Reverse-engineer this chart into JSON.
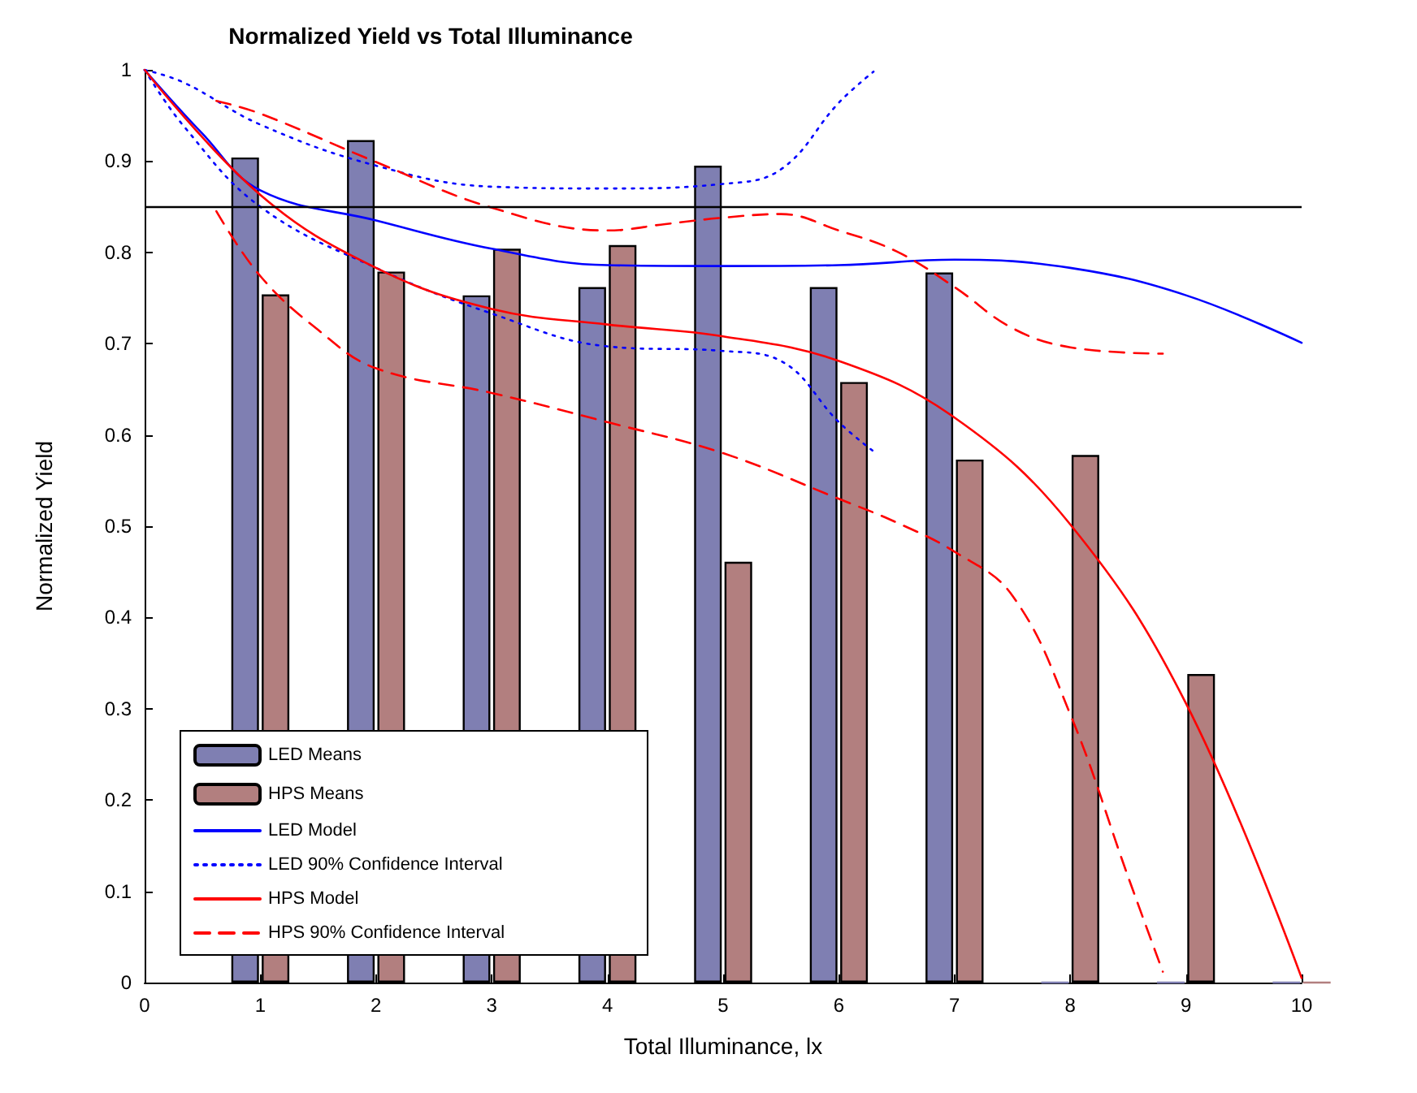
{
  "chart_data": {
    "type": "bar",
    "title": "Normalized Yield vs Total Illuminance",
    "xlabel": "Total Illuminance, lx",
    "ylabel": "Normalized Yield",
    "xlim": [
      0,
      10
    ],
    "xticks": [
      0,
      1,
      2,
      3,
      4,
      5,
      6,
      7,
      8,
      9,
      10
    ],
    "ylim": [
      0,
      1
    ],
    "yticks": [
      0,
      0.1,
      0.2,
      0.3,
      0.4,
      0.5,
      0.6,
      0.7,
      0.8,
      0.9,
      1
    ],
    "grid": false,
    "legend": "bottom left",
    "ref_lines": [
      {
        "axis": "y",
        "value": 0.85,
        "color": "#000000",
        "line_style": "solid"
      }
    ],
    "series": [
      {
        "name": "LED Means",
        "color": "#7f7fb2",
        "x": [
          1,
          2,
          3,
          4,
          5,
          6,
          7,
          8,
          9,
          10
        ],
        "values": [
          0.904,
          0.923,
          0.753,
          0.762,
          0.895,
          0.762,
          0.778,
          0,
          0,
          0
        ]
      },
      {
        "name": "HPS Means",
        "color": "#b27f7f",
        "x": [
          1,
          2,
          3,
          4,
          5,
          6,
          7,
          8,
          9,
          10
        ],
        "values": [
          0.754,
          0.779,
          0.804,
          0.808,
          0.461,
          0.658,
          0.573,
          0.578,
          0.338,
          0
        ]
      },
      {
        "name": "LED Model",
        "type": "line",
        "color": "#0000ff",
        "line_style": "solid",
        "x": [
          0,
          0.5,
          1,
          2,
          3,
          4,
          5,
          6,
          7,
          8,
          9,
          10
        ],
        "values": [
          1,
          0.93,
          0.868,
          0.835,
          0.804,
          0.786,
          0.785,
          0.786,
          0.792,
          0.783,
          0.753,
          0.701
        ]
      },
      {
        "name": "LED 90% Confidence Interval",
        "type": "line",
        "color": "#0000ff",
        "line_style": "dotted",
        "x": [
          0,
          0.34,
          1,
          2,
          3,
          4,
          5,
          5.5,
          6,
          6.3
        ],
        "values": [
          1,
          0.986,
          0.94,
          0.895,
          0.872,
          0.87,
          0.875,
          0.891,
          0.964,
          0.998
        ]
      },
      {
        "type": "line",
        "color": "#0000ff",
        "line_style": "dotted",
        "x": [
          0,
          0.34,
          1,
          2,
          3,
          4,
          5,
          5.5,
          6,
          6.3
        ],
        "values": [
          1,
          0.938,
          0.85,
          0.783,
          0.733,
          0.697,
          0.692,
          0.681,
          0.614,
          0.582
        ]
      },
      {
        "name": "HPS Model",
        "type": "line",
        "color": "#ff0000",
        "line_style": "solid",
        "x": [
          0,
          1,
          2,
          3,
          4,
          5,
          6,
          7,
          8,
          9,
          10
        ],
        "values": [
          1,
          0.863,
          0.783,
          0.738,
          0.721,
          0.708,
          0.681,
          0.619,
          0.502,
          0.306,
          0.005
        ]
      },
      {
        "name": "HPS 90% Confidence Interval",
        "type": "line",
        "color": "#ff0000",
        "line_style": "dashed",
        "x": [
          0.62,
          1,
          2,
          3,
          4,
          4.5,
          5,
          5.5,
          6,
          6.5,
          7,
          7.5,
          8,
          8.8
        ],
        "values": [
          0.966,
          0.952,
          0.899,
          0.849,
          0.824,
          0.831,
          0.838,
          0.842,
          0.824,
          0.801,
          0.762,
          0.717,
          0.696,
          0.689
        ]
      },
      {
        "type": "line",
        "color": "#ff0000",
        "line_style": "dashed",
        "x": [
          0.62,
          1,
          1.5,
          2,
          3,
          4,
          5,
          6,
          6.5,
          7,
          7.5,
          8,
          8.5,
          8.8
        ],
        "values": [
          0.845,
          0.774,
          0.715,
          0.673,
          0.646,
          0.614,
          0.58,
          0.53,
          0.504,
          0.472,
          0.424,
          0.294,
          0.116,
          0.012
        ]
      }
    ]
  }
}
